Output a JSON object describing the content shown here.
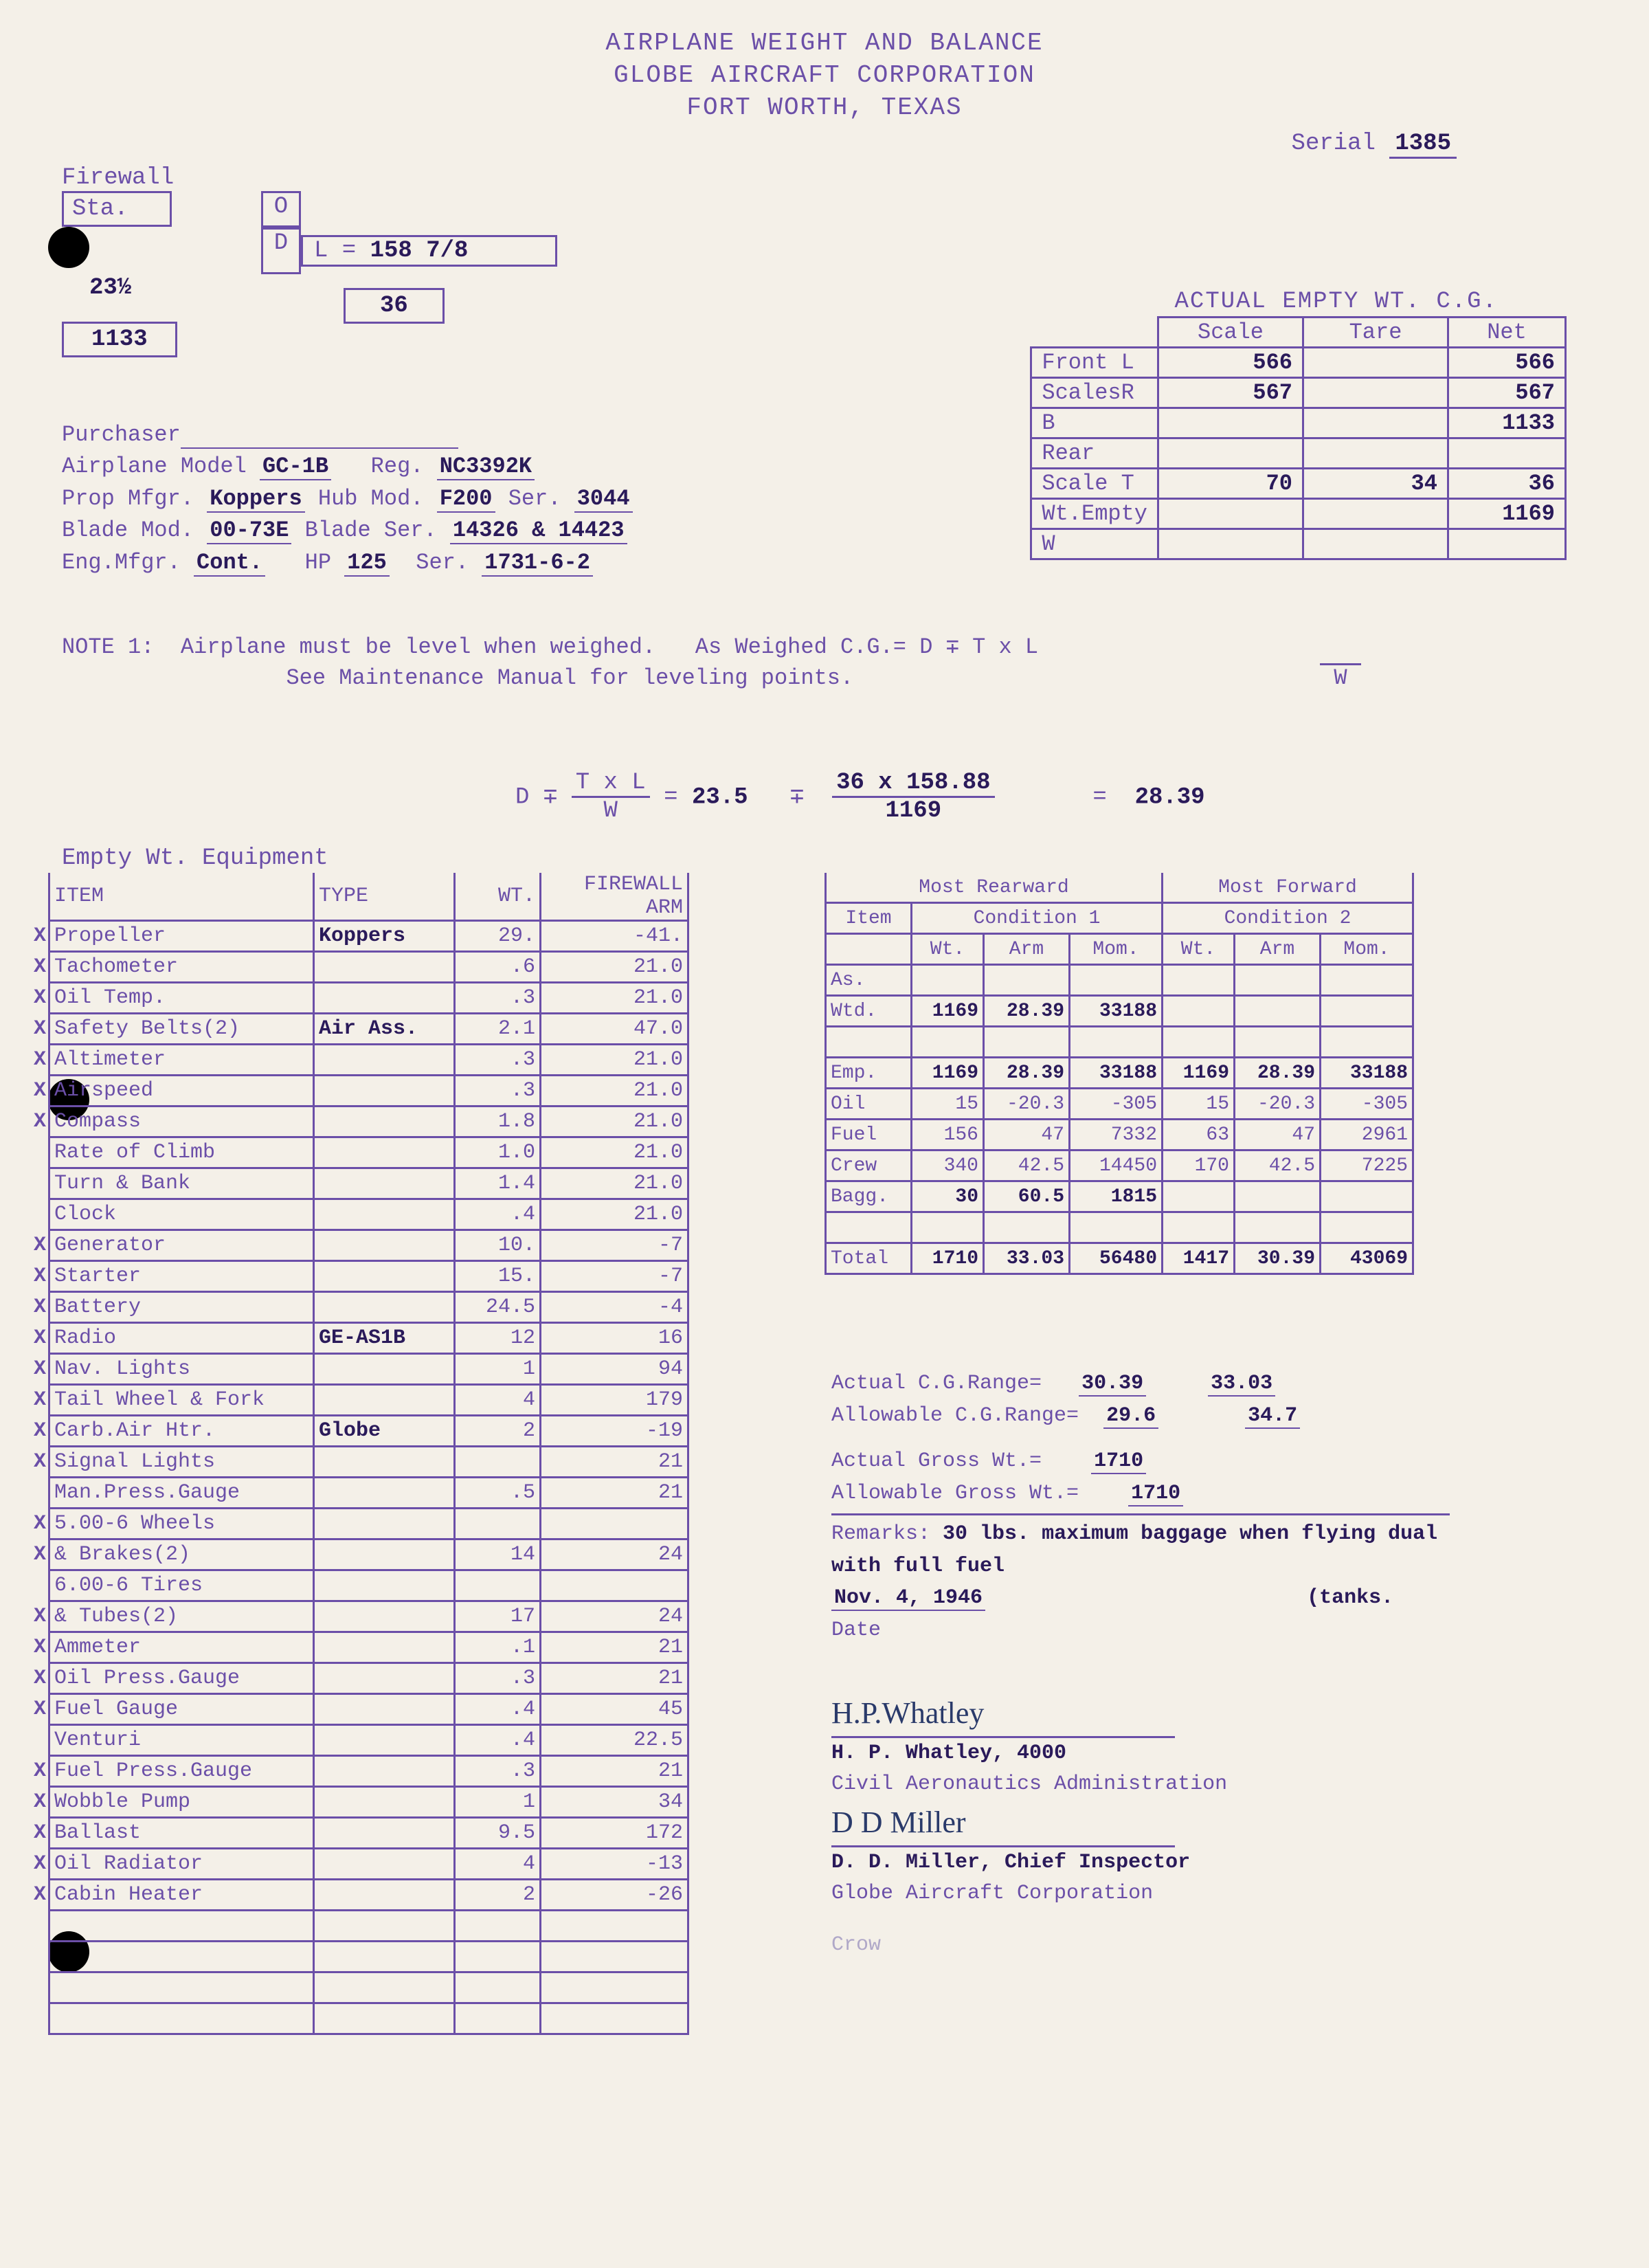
{
  "header": {
    "line1": "AIRPLANE WEIGHT AND BALANCE",
    "line2": "GLOBE AIRCRAFT CORPORATION",
    "line3": "FORT WORTH, TEXAS"
  },
  "serial": {
    "label": "Serial",
    "value": "1385"
  },
  "firewall": {
    "label1": "Firewall",
    "label2": "Sta.",
    "sta": "23½",
    "D": "D",
    "L_label": "L",
    "L_val": "158 7/8",
    "bottom_left": "1133",
    "bottom_right": "36",
    "O": "O"
  },
  "info": {
    "purchaser": "Purchaser",
    "model_label": "Airplane Model",
    "model": "GC-1B",
    "reg_label": "Reg.",
    "reg": "NC3392K",
    "prop_label": "Prop Mfgr.",
    "prop": "Koppers",
    "hub_label": "Hub Mod.",
    "hub": "F200",
    "propser_label": "Ser.",
    "propser": "3044",
    "blade_label": "Blade Mod.",
    "blade": "00-73E",
    "bladeser_label": "Blade Ser.",
    "bladeser": "14326 & 14423",
    "eng_label": "Eng.Mfgr.",
    "eng": "Cont.",
    "hp_label": "HP",
    "hp": "125",
    "engser_label": "Ser.",
    "engser": "1731-6-2"
  },
  "wt_title": "ACTUAL EMPTY WT. C.G.",
  "wt_headers": {
    "scale": "Scale",
    "tare": "Tare",
    "net": "Net"
  },
  "wt_rows": [
    {
      "label": "Front L",
      "scale": "566",
      "tare": "",
      "net": "566"
    },
    {
      "label": "ScalesR",
      "scale": "567",
      "tare": "",
      "net": "567"
    },
    {
      "label": "B",
      "scale": "",
      "tare": "",
      "net": "1133"
    },
    {
      "label": "Rear",
      "scale": "",
      "tare": "",
      "net": ""
    },
    {
      "label": "Scale T",
      "scale": "70",
      "tare": "34",
      "net": "36"
    },
    {
      "label": "Wt.Empty",
      "scale": "",
      "tare": "",
      "net": "1169"
    },
    {
      "label": "W",
      "scale": "",
      "tare": "",
      "net": ""
    }
  ],
  "note1": {
    "label": "NOTE 1:",
    "text1": "Airplane must be level when weighed.",
    "text2": "See Maintenance Manual for leveling points.",
    "text3": "As Weighed C.G.= D ∓ T x L",
    "text3b": "W"
  },
  "formula": {
    "lhs": "D ∓",
    "top": "T x L",
    "bot": "W",
    "eq": "=",
    "v1": "23.5",
    "mid": "∓",
    "top2": "36 x 158.88",
    "bot2": "1169",
    "eq2": "=",
    "result": "28.39"
  },
  "equip_title": "Empty Wt. Equipment",
  "equip_headers": {
    "item": "ITEM",
    "type": "TYPE",
    "wt": "WT.",
    "arm": "FIREWALL ARM"
  },
  "equip_rows": [
    {
      "x": "X",
      "item": "Propeller",
      "type": "Koppers",
      "wt": "29.",
      "arm": "-41."
    },
    {
      "x": "X",
      "item": "Tachometer",
      "type": "",
      "wt": ".6",
      "arm": "21.0"
    },
    {
      "x": "X",
      "item": "Oil Temp.",
      "type": "",
      "wt": ".3",
      "arm": "21.0"
    },
    {
      "x": "X",
      "item": "Safety Belts(2)",
      "type": "Air Ass.",
      "wt": "2.1",
      "arm": "47.0"
    },
    {
      "x": "X",
      "item": "Altimeter",
      "type": "",
      "wt": ".3",
      "arm": "21.0"
    },
    {
      "x": "X",
      "item": "Airspeed",
      "type": "",
      "wt": ".3",
      "arm": "21.0"
    },
    {
      "x": "X",
      "item": "Compass",
      "type": "",
      "wt": "1.8",
      "arm": "21.0"
    },
    {
      "x": "",
      "item": "Rate of Climb",
      "type": "",
      "wt": "1.0",
      "arm": "21.0"
    },
    {
      "x": "",
      "item": "Turn & Bank",
      "type": "",
      "wt": "1.4",
      "arm": "21.0"
    },
    {
      "x": "",
      "item": "Clock",
      "type": "",
      "wt": ".4",
      "arm": "21.0"
    },
    {
      "x": "X",
      "item": "Generator",
      "type": "",
      "wt": "10.",
      "arm": "-7"
    },
    {
      "x": "X",
      "item": "Starter",
      "type": "",
      "wt": "15.",
      "arm": "-7"
    },
    {
      "x": "X",
      "item": "Battery",
      "type": "",
      "wt": "24.5",
      "arm": "-4"
    },
    {
      "x": "X",
      "item": "Radio",
      "type": "GE-AS1B",
      "wt": "12",
      "arm": "16"
    },
    {
      "x": "X",
      "item": "Nav. Lights",
      "type": "",
      "wt": "1",
      "arm": "94"
    },
    {
      "x": "X",
      "item": "Tail Wheel & Fork",
      "type": "",
      "wt": "4",
      "arm": "179"
    },
    {
      "x": "X",
      "item": "Carb.Air Htr.",
      "type": "Globe",
      "wt": "2",
      "arm": "-19"
    },
    {
      "x": "X",
      "item": "Signal Lights",
      "type": "",
      "wt": "",
      "arm": "21"
    },
    {
      "x": "",
      "item": "Man.Press.Gauge",
      "type": "",
      "wt": ".5",
      "arm": "21"
    },
    {
      "x": "X",
      "item": "5.00-6 Wheels",
      "type": "",
      "wt": "",
      "arm": ""
    },
    {
      "x": "X",
      "item": "& Brakes(2)",
      "type": "",
      "wt": "14",
      "arm": "24"
    },
    {
      "x": "",
      "item": "6.00-6 Tires",
      "type": "",
      "wt": "",
      "arm": ""
    },
    {
      "x": "X",
      "item": "& Tubes(2)",
      "type": "",
      "wt": "17",
      "arm": "24"
    },
    {
      "x": "X",
      "item": "Ammeter",
      "type": "",
      "wt": ".1",
      "arm": "21"
    },
    {
      "x": "X",
      "item": "Oil Press.Gauge",
      "type": "",
      "wt": ".3",
      "arm": "21"
    },
    {
      "x": "X",
      "item": "Fuel Gauge",
      "type": "",
      "wt": ".4",
      "arm": "45"
    },
    {
      "x": "",
      "item": "Venturi",
      "type": "",
      "wt": ".4",
      "arm": "22.5"
    },
    {
      "x": "X",
      "item": "Fuel Press.Gauge",
      "type": "",
      "wt": ".3",
      "arm": "21"
    },
    {
      "x": "X",
      "item": "Wobble Pump",
      "type": "",
      "wt": "1",
      "arm": "34"
    },
    {
      "x": "X",
      "item": "Ballast",
      "type": "",
      "wt": "9.5",
      "arm": "172"
    },
    {
      "x": "X",
      "item": "Oil Radiator",
      "type": "",
      "wt": "4",
      "arm": "-13"
    },
    {
      "x": "X",
      "item": "Cabin Heater",
      "type": "",
      "wt": "2",
      "arm": "-26"
    },
    {
      "x": "",
      "item": "",
      "type": "",
      "wt": "",
      "arm": ""
    },
    {
      "x": "",
      "item": "",
      "type": "",
      "wt": "",
      "arm": ""
    },
    {
      "x": "",
      "item": "",
      "type": "",
      "wt": "",
      "arm": ""
    },
    {
      "x": "",
      "item": "",
      "type": "",
      "wt": "",
      "arm": ""
    }
  ],
  "cond": {
    "hdr_rear": "Most Rearward",
    "hdr_fwd": "Most Forward",
    "sub_item": "Item",
    "sub_wt": "Wt.",
    "sub_arm": "Arm",
    "sub_mom": "Mom.",
    "cond1": "Condition 1",
    "cond2": "Condition 2",
    "rows": [
      {
        "lbl": "As.",
        "w1": "",
        "a1": "",
        "m1": "",
        "w2": "",
        "a2": "",
        "m2": ""
      },
      {
        "lbl": "Wtd.",
        "w1": "1169",
        "a1": "28.39",
        "m1": "33188",
        "w2": "",
        "a2": "",
        "m2": ""
      },
      {
        "lbl": "",
        "w1": "",
        "a1": "",
        "m1": "",
        "w2": "",
        "a2": "",
        "m2": ""
      },
      {
        "lbl": "Emp.",
        "w1": "1169",
        "a1": "28.39",
        "m1": "33188",
        "w2": "1169",
        "a2": "28.39",
        "m2": "33188"
      },
      {
        "lbl": "Oil",
        "w1": "15",
        "a1": "-20.3",
        "m1": "-305",
        "w2": "15",
        "a2": "-20.3",
        "m2": "-305"
      },
      {
        "lbl": "Fuel",
        "w1": "156",
        "a1": "47",
        "m1": "7332",
        "w2": "63",
        "a2": "47",
        "m2": "2961"
      },
      {
        "lbl": "Crew",
        "w1": "340",
        "a1": "42.5",
        "m1": "14450",
        "w2": "170",
        "a2": "42.5",
        "m2": "7225"
      },
      {
        "lbl": "Bagg.",
        "w1": "30",
        "a1": "60.5",
        "m1": "1815",
        "w2": "",
        "a2": "",
        "m2": ""
      },
      {
        "lbl": "",
        "w1": "",
        "a1": "",
        "m1": "",
        "w2": "",
        "a2": "",
        "m2": ""
      },
      {
        "lbl": "Total",
        "w1": "1710",
        "a1": "33.03",
        "m1": "56480",
        "w2": "1417",
        "a2": "30.39",
        "m2": "43069"
      }
    ]
  },
  "ranges": {
    "actual_cg_label": "Actual C.G.Range=",
    "actual_cg_1": "30.39",
    "actual_cg_2": "33.03",
    "allow_cg_label": "Allowable C.G.Range=",
    "allow_cg_1": "29.6",
    "allow_cg_2": "34.7",
    "actual_gw_label": "Actual Gross Wt.=",
    "actual_gw": "1710",
    "allow_gw_label": "Allowable Gross Wt.=",
    "allow_gw": "1710",
    "remarks_label": "Remarks:",
    "remarks": "30 lbs. maximum baggage when flying dual with full fuel",
    "date_label": "Date",
    "date": "Nov. 4, 1946",
    "tanks": "(tanks."
  },
  "sig": {
    "sig1": "H.P.Whatley",
    "name1": "H. P. Whatley, 4000",
    "org1": "Civil Aeronautics Administration",
    "sig2": "D D Miller",
    "name2": "D. D. Miller, Chief Inspector",
    "org2": "Globe Aircraft Corporation",
    "crow": "Crow"
  }
}
